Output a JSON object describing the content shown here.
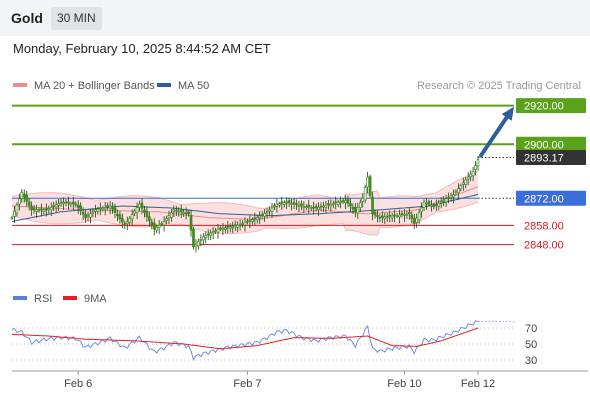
{
  "header": {
    "title": "Gold",
    "timeframe": "30 MIN",
    "datetime": "Monday, February 10, 2025 8:44:52 AM CET"
  },
  "legend": {
    "items": [
      {
        "label": "MA 20 + Bollinger Bands",
        "color": "#f08a86"
      },
      {
        "label": "MA 50",
        "color": "#2f5d9b"
      }
    ],
    "credit": "Research © 2025 Trading Central"
  },
  "indicator_legend": {
    "items": [
      {
        "label": "RSI",
        "color": "#5b7fd6"
      },
      {
        "label": "9MA",
        "color": "#e51f1f"
      }
    ]
  },
  "colors": {
    "resistance": "#5aa21b",
    "current": "#333333",
    "pivot": "#3a6fd8",
    "support": "#d81a22",
    "arrow": "#2f5d9b",
    "candle": "#3d8d1c"
  },
  "chart_data": [
    {
      "type": "candlestick",
      "title": "Gold",
      "timeframe": "30 MIN",
      "x_ticks": [
        "Feb 6",
        "Feb 7",
        "Feb 10",
        "Feb 12"
      ],
      "ylim": [
        2839,
        2925
      ],
      "levels": [
        {
          "value": 2920.0,
          "label": "2920.00",
          "kind": "resistance"
        },
        {
          "value": 2900.0,
          "label": "2900.00",
          "kind": "resistance"
        },
        {
          "value": 2893.17,
          "label": "2893.17",
          "kind": "current"
        },
        {
          "value": 2872.0,
          "label": "2872.00",
          "kind": "pivot"
        },
        {
          "value": 2858.0,
          "label": "2858.00",
          "kind": "support"
        },
        {
          "value": 2848.0,
          "label": "2848.00",
          "kind": "support"
        }
      ],
      "arrow": {
        "from": 2893.17,
        "to": 2920.0
      },
      "series": [
        {
          "name": "Price",
          "anchors": [
            [
              0,
              2862
            ],
            [
              4,
              2875
            ],
            [
              8,
              2866
            ],
            [
              14,
              2866
            ],
            [
              20,
              2870
            ],
            [
              26,
              2869
            ],
            [
              30,
              2862
            ],
            [
              34,
              2866
            ],
            [
              40,
              2868
            ],
            [
              46,
              2858
            ],
            [
              52,
              2869
            ],
            [
              58,
              2856
            ],
            [
              62,
              2860
            ],
            [
              66,
              2866
            ],
            [
              72,
              2864
            ],
            [
              74,
              2847
            ],
            [
              78,
              2852
            ],
            [
              84,
              2856
            ],
            [
              88,
              2857
            ],
            [
              92,
              2858
            ],
            [
              96,
              2860
            ],
            [
              100,
              2862
            ],
            [
              104,
              2865
            ],
            [
              108,
              2869
            ],
            [
              112,
              2870
            ],
            [
              118,
              2868
            ],
            [
              124,
              2867
            ],
            [
              130,
              2869
            ],
            [
              136,
              2871
            ],
            [
              140,
              2865
            ],
            [
              143,
              2872
            ],
            [
              145,
              2883
            ],
            [
              147,
              2864
            ],
            [
              150,
              2862
            ],
            [
              156,
              2863
            ],
            [
              162,
              2864
            ],
            [
              164,
              2859
            ],
            [
              168,
              2870
            ],
            [
              172,
              2868
            ],
            [
              176,
              2871
            ],
            [
              180,
              2874
            ],
            [
              184,
              2880
            ],
            [
              188,
              2886
            ],
            [
              190,
              2892
            ]
          ]
        },
        {
          "name": "MA 20 + Bollinger Bands",
          "values": [
            [
              0,
              2868
            ],
            [
              30,
              2866
            ],
            [
              60,
              2865
            ],
            [
              80,
              2862
            ],
            [
              100,
              2861
            ],
            [
              125,
              2866
            ],
            [
              145,
              2864
            ],
            [
              165,
              2866
            ],
            [
              190,
              2878
            ]
          ]
        },
        {
          "name": "MA 50",
          "values": [
            [
              0,
              2860
            ],
            [
              20,
              2865
            ],
            [
              45,
              2868
            ],
            [
              65,
              2867
            ],
            [
              85,
              2864
            ],
            [
              105,
              2863
            ],
            [
              125,
              2864
            ],
            [
              150,
              2866
            ],
            [
              170,
              2868
            ],
            [
              190,
              2874
            ]
          ]
        }
      ]
    },
    {
      "type": "line",
      "title": "RSI",
      "x_ticks": [
        "Feb 6",
        "Feb 7",
        "Feb 10",
        "Feb 12"
      ],
      "ylim": [
        20,
        90
      ],
      "y_ticks": [
        70,
        50,
        30
      ],
      "series": [
        {
          "name": "RSI",
          "values": [
            [
              0,
              68
            ],
            [
              4,
              65
            ],
            [
              8,
              52
            ],
            [
              14,
              56
            ],
            [
              20,
              58
            ],
            [
              26,
              57
            ],
            [
              30,
              46
            ],
            [
              34,
              50
            ],
            [
              40,
              57
            ],
            [
              46,
              45
            ],
            [
              52,
              58
            ],
            [
              58,
              40
            ],
            [
              62,
              45
            ],
            [
              66,
              52
            ],
            [
              72,
              47
            ],
            [
              74,
              33
            ],
            [
              78,
              38
            ],
            [
              84,
              43
            ],
            [
              88,
              46
            ],
            [
              92,
              48
            ],
            [
              96,
              50
            ],
            [
              100,
              52
            ],
            [
              104,
              58
            ],
            [
              108,
              65
            ],
            [
              112,
              67
            ],
            [
              118,
              58
            ],
            [
              124,
              54
            ],
            [
              130,
              58
            ],
            [
              136,
              60
            ],
            [
              140,
              48
            ],
            [
              143,
              62
            ],
            [
              145,
              72
            ],
            [
              147,
              44
            ],
            [
              150,
              41
            ],
            [
              156,
              45
            ],
            [
              162,
              47
            ],
            [
              164,
              40
            ],
            [
              168,
              55
            ],
            [
              172,
              55
            ],
            [
              176,
              60
            ],
            [
              180,
              64
            ],
            [
              184,
              70
            ],
            [
              188,
              76
            ],
            [
              190,
              78
            ]
          ]
        },
        {
          "name": "9MA",
          "values": [
            [
              0,
              62
            ],
            [
              15,
              60
            ],
            [
              30,
              56
            ],
            [
              50,
              54
            ],
            [
              70,
              50
            ],
            [
              85,
              44
            ],
            [
              100,
              48
            ],
            [
              115,
              58
            ],
            [
              130,
              57
            ],
            [
              145,
              60
            ],
            [
              155,
              48
            ],
            [
              165,
              47
            ],
            [
              175,
              54
            ],
            [
              190,
              70
            ]
          ]
        }
      ]
    }
  ]
}
